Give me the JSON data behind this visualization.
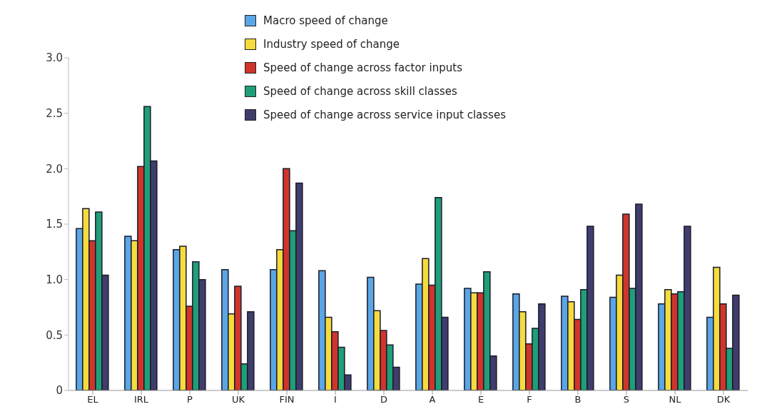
{
  "chart_data": {
    "type": "bar",
    "categories": [
      "EL",
      "IRL",
      "P",
      "UK",
      "FIN",
      "I",
      "D",
      "A",
      "E",
      "F",
      "B",
      "S",
      "NL",
      "DK"
    ],
    "series": [
      {
        "name": "Macro speed of change",
        "color": "#5aa6e6",
        "values": [
          1.46,
          1.39,
          1.27,
          1.09,
          1.09,
          1.08,
          1.02,
          0.96,
          0.92,
          0.87,
          0.85,
          0.84,
          0.78,
          0.66
        ]
      },
      {
        "name": "Industry speed of change",
        "color": "#f5dc3c",
        "values": [
          1.64,
          1.35,
          1.3,
          0.69,
          1.27,
          0.66,
          0.72,
          1.19,
          0.88,
          0.71,
          0.8,
          1.04,
          0.91,
          1.11
        ]
      },
      {
        "name": "Speed of change across factor inputs",
        "color": "#d0352b",
        "values": [
          1.35,
          2.02,
          0.76,
          0.94,
          2.0,
          0.53,
          0.54,
          0.95,
          0.88,
          0.42,
          0.64,
          1.59,
          0.87,
          0.78
        ]
      },
      {
        "name": "Speed of change across skill classes",
        "color": "#1f9e78",
        "values": [
          1.61,
          2.56,
          1.16,
          0.24,
          1.44,
          0.39,
          0.41,
          1.74,
          1.07,
          0.56,
          0.91,
          0.92,
          0.89,
          0.38
        ]
      },
      {
        "name": "Speed of change across service input classes",
        "color": "#3f3d6b",
        "values": [
          1.04,
          2.07,
          1.0,
          0.71,
          1.87,
          0.14,
          0.21,
          0.66,
          0.31,
          0.78,
          1.48,
          1.68,
          1.48,
          0.86
        ]
      }
    ],
    "ylim": [
      0,
      3
    ],
    "yticks": [
      0,
      {
        "value": 0.5,
        "label": "0.5"
      },
      {
        "value": 1,
        "label": "1.0"
      },
      {
        "value": 1.5,
        "label": "1.5"
      },
      {
        "value": 2,
        "label": "2.0"
      },
      {
        "value": 2.5,
        "label": "2.5"
      },
      {
        "value": 3,
        "label": "3.0"
      }
    ],
    "grid": false,
    "legend": "top"
  }
}
